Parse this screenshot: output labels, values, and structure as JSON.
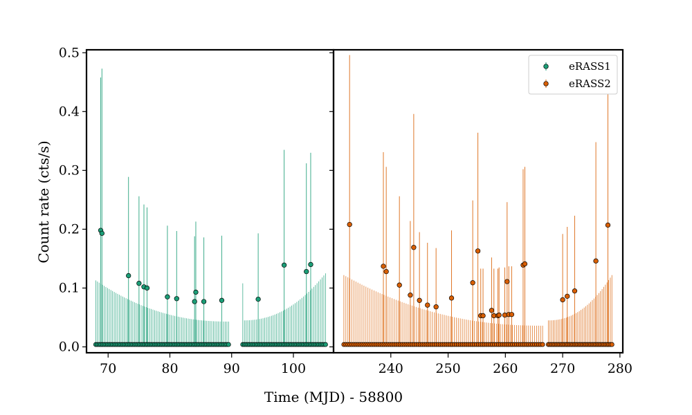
{
  "chart_data": {
    "type": "scatter",
    "xlabel": "Time (MJD) - 58800",
    "ylabel": "Count rate (cts/s)",
    "ylim": [
      -0.01,
      0.505
    ],
    "yticks": [
      0.0,
      0.1,
      0.2,
      0.3,
      0.4,
      0.5
    ],
    "ytick_labels": [
      "0.0",
      "0.1",
      "0.2",
      "0.3",
      "0.4",
      "0.5"
    ],
    "legend": {
      "position": "top-right",
      "entries": [
        "eRASS1",
        "eRASS2"
      ]
    },
    "panels": [
      {
        "xlim": [
          66.5,
          106.5
        ],
        "xticks": [
          70,
          80,
          90,
          100
        ],
        "xtick_labels": [
          "70",
          "80",
          "90",
          "100"
        ],
        "series": [
          {
            "name": "eRASS1",
            "color": "#1b9e77",
            "segments": [
              {
                "x_start": 68.0,
                "x_end": 89.5,
                "n": 80,
                "upper_left": 0.113,
                "upper_right": 0.043,
                "shape": "decay"
              },
              {
                "x_start": 91.8,
                "x_end": 105.2,
                "n": 50,
                "upper_left": 0.045,
                "upper_right": 0.125,
                "shape": "rise",
                "first_upper": 0.108
              }
            ],
            "zero_level": 0.004,
            "detections": [
              {
                "x": 68.8,
                "y": 0.198,
                "yerr_up": 0.26
              },
              {
                "x": 69.0,
                "y": 0.193,
                "yerr_up": 0.28
              },
              {
                "x": 73.3,
                "y": 0.121,
                "yerr_up": 0.168
              },
              {
                "x": 75.0,
                "y": 0.108,
                "yerr_up": 0.148
              },
              {
                "x": 75.8,
                "y": 0.102,
                "yerr_up": 0.14
              },
              {
                "x": 76.3,
                "y": 0.1,
                "yerr_up": 0.137
              },
              {
                "x": 79.6,
                "y": 0.085,
                "yerr_up": 0.121
              },
              {
                "x": 81.1,
                "y": 0.082,
                "yerr_up": 0.115
              },
              {
                "x": 84.0,
                "y": 0.077,
                "yerr_up": 0.111
              },
              {
                "x": 84.2,
                "y": 0.093,
                "yerr_up": 0.12
              },
              {
                "x": 85.5,
                "y": 0.077,
                "yerr_up": 0.109
              },
              {
                "x": 88.4,
                "y": 0.079,
                "yerr_up": 0.11
              },
              {
                "x": 94.3,
                "y": 0.081,
                "yerr_up": 0.112
              },
              {
                "x": 98.5,
                "y": 0.139,
                "yerr_up": 0.196
              },
              {
                "x": 102.1,
                "y": 0.128,
                "yerr_up": 0.184
              },
              {
                "x": 102.8,
                "y": 0.14,
                "yerr_up": 0.19
              }
            ]
          }
        ]
      },
      {
        "xlim": [
          230.0,
          280.5
        ],
        "xticks": [
          240,
          250,
          260,
          270,
          280
        ],
        "xtick_labels": [
          "240",
          "250",
          "260",
          "270",
          "280"
        ],
        "series": [
          {
            "name": "eRASS2",
            "color": "#d95f02",
            "segments": [
              {
                "x_start": 231.8,
                "x_end": 266.5,
                "n": 100,
                "upper_left": 0.122,
                "upper_right": 0.036,
                "shape": "decay"
              },
              {
                "x_start": 267.5,
                "x_end": 278.6,
                "n": 40,
                "upper_left": 0.045,
                "upper_right": 0.122,
                "shape": "rise"
              }
            ],
            "zero_level": 0.004,
            "detections": [
              {
                "x": 232.8,
                "y": 0.208,
                "yerr_up": 0.288
              },
              {
                "x": 238.7,
                "y": 0.137,
                "yerr_up": 0.194
              },
              {
                "x": 239.2,
                "y": 0.128,
                "yerr_up": 0.178
              },
              {
                "x": 241.5,
                "y": 0.105,
                "yerr_up": 0.151
              },
              {
                "x": 243.4,
                "y": 0.088,
                "yerr_up": 0.126
              },
              {
                "x": 244.0,
                "y": 0.169,
                "yerr_up": 0.227
              },
              {
                "x": 245.0,
                "y": 0.079,
                "yerr_up": 0.116
              },
              {
                "x": 246.4,
                "y": 0.071,
                "yerr_up": 0.106
              },
              {
                "x": 247.9,
                "y": 0.068,
                "yerr_up": 0.1
              },
              {
                "x": 250.6,
                "y": 0.083,
                "yerr_up": 0.115
              },
              {
                "x": 254.3,
                "y": 0.109,
                "yerr_up": 0.14
              },
              {
                "x": 255.2,
                "y": 0.163,
                "yerr_up": 0.201
              },
              {
                "x": 255.7,
                "y": 0.053,
                "yerr_up": 0.08
              },
              {
                "x": 256.1,
                "y": 0.053,
                "yerr_up": 0.08
              },
              {
                "x": 257.6,
                "y": 0.062,
                "yerr_up": 0.09
              },
              {
                "x": 258.0,
                "y": 0.053,
                "yerr_up": 0.08
              },
              {
                "x": 258.7,
                "y": 0.053,
                "yerr_up": 0.08
              },
              {
                "x": 258.9,
                "y": 0.054,
                "yerr_up": 0.081
              },
              {
                "x": 259.9,
                "y": 0.054,
                "yerr_up": 0.081
              },
              {
                "x": 260.3,
                "y": 0.111,
                "yerr_up": 0.135
              },
              {
                "x": 260.6,
                "y": 0.055,
                "yerr_up": 0.082
              },
              {
                "x": 261.1,
                "y": 0.055,
                "yerr_up": 0.082
              },
              {
                "x": 263.1,
                "y": 0.139,
                "yerr_up": 0.163
              },
              {
                "x": 263.4,
                "y": 0.141,
                "yerr_up": 0.165
              },
              {
                "x": 270.0,
                "y": 0.08,
                "yerr_up": 0.112
              },
              {
                "x": 270.8,
                "y": 0.086,
                "yerr_up": 0.118
              },
              {
                "x": 272.1,
                "y": 0.095,
                "yerr_up": 0.128
              },
              {
                "x": 275.8,
                "y": 0.146,
                "yerr_up": 0.202
              },
              {
                "x": 277.9,
                "y": 0.207,
                "yerr_up": 0.28
              }
            ]
          }
        ]
      }
    ]
  }
}
